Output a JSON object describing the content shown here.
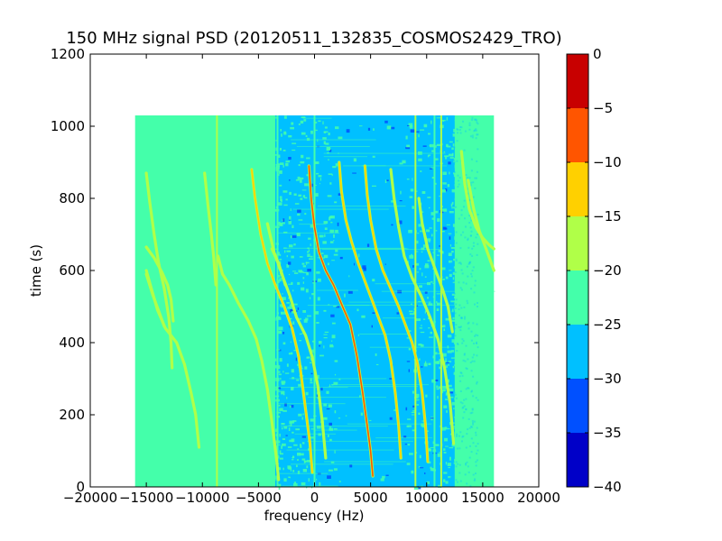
{
  "chart_data": {
    "type": "heatmap",
    "title": "150 MHz signal PSD (20120511_132835_COSMOS2429_TRO)",
    "xlabel": "frequency (Hz)",
    "ylabel": "time (s)",
    "xlim": [
      -20000,
      20000
    ],
    "ylim": [
      0,
      1200
    ],
    "x_ticks": [
      -20000,
      -15000,
      -10000,
      -5000,
      0,
      5000,
      10000,
      15000,
      20000
    ],
    "x_tick_labels": [
      "−20000",
      "−15000",
      "−10000",
      "−5000",
      "0",
      "5000",
      "10000",
      "15000",
      "20000"
    ],
    "y_ticks": [
      0,
      200,
      400,
      600,
      800,
      1000,
      1200
    ],
    "y_tick_labels": [
      "0",
      "200",
      "400",
      "600",
      "800",
      "1000",
      "1200"
    ],
    "data_extent": {
      "x": [
        -16000,
        16000
      ],
      "y": [
        0,
        1030
      ]
    },
    "background_level_db": -22.5,
    "colorbar": {
      "range": [
        -40,
        0
      ],
      "ticks": [
        0,
        -5,
        -10,
        -15,
        -20,
        -25,
        -30,
        -35,
        -40
      ],
      "tick_labels": [
        "0",
        "−5",
        "−10",
        "−15",
        "−20",
        "−25",
        "−30",
        "−35",
        "−40"
      ],
      "levels": [
        {
          "range": [
            -40,
            -35
          ],
          "color": "#0000c8"
        },
        {
          "range": [
            -35,
            -30
          ],
          "color": "#0050ff"
        },
        {
          "range": [
            -30,
            -25
          ],
          "color": "#00c0ff"
        },
        {
          "range": [
            -25,
            -20
          ],
          "color": "#44ffaa"
        },
        {
          "range": [
            -20,
            -15
          ],
          "color": "#b0ff48"
        },
        {
          "range": [
            -15,
            -10
          ],
          "color": "#ffd000"
        },
        {
          "range": [
            -10,
            -5
          ],
          "color": "#ff5500"
        },
        {
          "range": [
            -5,
            0
          ],
          "color": "#c80000"
        }
      ]
    },
    "noise_band": {
      "x": [
        -3500,
        12500
      ],
      "y": [
        0,
        1030
      ],
      "level_db": -27.5
    },
    "vertical_lines": [
      {
        "x": -8700,
        "y": [
          0,
          1030
        ],
        "level_db": -17.5
      },
      {
        "x": -8200,
        "y": [
          0,
          1030
        ],
        "level_db": -22.5
      },
      {
        "x": -3300,
        "y": [
          0,
          1030
        ],
        "level_db": -22.5
      },
      {
        "x": 0,
        "y": [
          0,
          1030
        ],
        "level_db": -22.5
      },
      {
        "x": 9000,
        "y": [
          0,
          1030
        ],
        "level_db": -17.5
      },
      {
        "x": 10700,
        "y": [
          0,
          1030
        ],
        "level_db": -22.5
      },
      {
        "x": 11300,
        "y": [
          0,
          1030
        ],
        "level_db": -17.5
      }
    ],
    "traces": [
      {
        "level_db": -17.5,
        "points": [
          [
            -15000,
            870
          ],
          [
            -14700,
            790
          ],
          [
            -14300,
            700
          ],
          [
            -13900,
            620
          ],
          [
            -13400,
            550
          ],
          [
            -13000,
            470
          ],
          [
            -12800,
            400
          ],
          [
            -12700,
            330
          ]
        ]
      },
      {
        "level_db": -17.5,
        "points": [
          [
            -15000,
            665
          ],
          [
            -14300,
            635
          ],
          [
            -13600,
            595
          ],
          [
            -13100,
            560
          ],
          [
            -12800,
            520
          ],
          [
            -12600,
            460
          ]
        ]
      },
      {
        "level_db": -17.5,
        "points": [
          [
            -15000,
            600
          ],
          [
            -14500,
            545
          ],
          [
            -14000,
            490
          ],
          [
            -13300,
            440
          ],
          [
            -12300,
            400
          ],
          [
            -11600,
            340
          ],
          [
            -11000,
            260
          ],
          [
            -10600,
            200
          ],
          [
            -10300,
            110
          ]
        ]
      },
      {
        "level_db": -17.5,
        "points": [
          [
            -15000,
            590
          ],
          [
            -14400,
            530
          ],
          [
            -13800,
            480
          ],
          [
            -13400,
            445
          ]
        ]
      },
      {
        "level_db": -17.5,
        "points": [
          [
            -9800,
            870
          ],
          [
            -9500,
            780
          ],
          [
            -9200,
            700
          ],
          [
            -9000,
            640
          ],
          [
            -8800,
            560
          ]
        ]
      },
      {
        "level_db": -17.5,
        "points": [
          [
            -8600,
            640
          ],
          [
            -8200,
            590
          ],
          [
            -7600,
            560
          ],
          [
            -6800,
            510
          ],
          [
            -5900,
            460
          ],
          [
            -5200,
            410
          ],
          [
            -4700,
            350
          ],
          [
            -4200,
            270
          ],
          [
            -3800,
            180
          ],
          [
            -3400,
            80
          ],
          [
            -3200,
            20
          ]
        ]
      },
      {
        "level_db": -12.5,
        "points": [
          [
            -5600,
            880
          ],
          [
            -5300,
            800
          ],
          [
            -4800,
            700
          ],
          [
            -4200,
            620
          ],
          [
            -3500,
            560
          ],
          [
            -2700,
            500
          ],
          [
            -2000,
            440
          ],
          [
            -1400,
            360
          ],
          [
            -900,
            240
          ],
          [
            -400,
            120
          ],
          [
            -200,
            40
          ]
        ]
      },
      {
        "level_db": -17.5,
        "points": [
          [
            -4200,
            730
          ],
          [
            -3600,
            650
          ],
          [
            -2800,
            580
          ],
          [
            -2200,
            530
          ],
          [
            -1600,
            470
          ],
          [
            -800,
            420
          ],
          [
            -200,
            360
          ],
          [
            300,
            280
          ],
          [
            700,
            180
          ],
          [
            1000,
            80
          ]
        ]
      },
      {
        "level_db": -17.5,
        "points": [
          [
            -3800,
            660
          ],
          [
            -3200,
            620
          ],
          [
            -2600,
            560
          ]
        ]
      },
      {
        "level_db": -7.5,
        "points": [
          [
            -500,
            890
          ],
          [
            -300,
            800
          ],
          [
            0,
            720
          ],
          [
            400,
            650
          ],
          [
            1000,
            600
          ],
          [
            1700,
            560
          ],
          [
            2500,
            500
          ],
          [
            3200,
            450
          ],
          [
            3800,
            360
          ],
          [
            4300,
            260
          ],
          [
            4700,
            170
          ],
          [
            5000,
            100
          ],
          [
            5200,
            30
          ]
        ]
      },
      {
        "level_db": -12.5,
        "points": [
          [
            2200,
            900
          ],
          [
            2400,
            820
          ],
          [
            2800,
            740
          ],
          [
            3300,
            680
          ],
          [
            3900,
            620
          ],
          [
            4500,
            570
          ],
          [
            5100,
            520
          ],
          [
            5700,
            470
          ],
          [
            6300,
            420
          ],
          [
            6800,
            350
          ],
          [
            7200,
            260
          ],
          [
            7500,
            170
          ],
          [
            7700,
            80
          ]
        ]
      },
      {
        "level_db": -12.5,
        "points": [
          [
            4500,
            890
          ],
          [
            4700,
            810
          ],
          [
            5000,
            740
          ],
          [
            5500,
            660
          ],
          [
            6100,
            600
          ],
          [
            6800,
            550
          ],
          [
            7500,
            500
          ],
          [
            8100,
            450
          ],
          [
            8700,
            400
          ],
          [
            9200,
            340
          ],
          [
            9600,
            260
          ],
          [
            9900,
            170
          ],
          [
            10100,
            70
          ]
        ]
      },
      {
        "level_db": -17.5,
        "points": [
          [
            6800,
            880
          ],
          [
            7100,
            800
          ],
          [
            7500,
            720
          ],
          [
            8000,
            640
          ],
          [
            8700,
            580
          ],
          [
            9500,
            530
          ],
          [
            10300,
            470
          ],
          [
            11000,
            410
          ],
          [
            11600,
            330
          ],
          [
            12100,
            230
          ],
          [
            12400,
            120
          ]
        ]
      },
      {
        "level_db": -17.5,
        "points": [
          [
            9300,
            800
          ],
          [
            9600,
            730
          ],
          [
            10100,
            660
          ],
          [
            10800,
            600
          ],
          [
            11400,
            550
          ],
          [
            11900,
            500
          ],
          [
            12300,
            430
          ]
        ]
      },
      {
        "level_db": -17.5,
        "points": [
          [
            13100,
            930
          ],
          [
            13400,
            840
          ],
          [
            13800,
            770
          ],
          [
            14400,
            720
          ],
          [
            15000,
            690
          ],
          [
            15600,
            670
          ],
          [
            16000,
            660
          ]
        ]
      },
      {
        "level_db": -17.5,
        "points": [
          [
            13700,
            850
          ],
          [
            14200,
            770
          ],
          [
            14700,
            710
          ],
          [
            15300,
            660
          ],
          [
            16000,
            600
          ]
        ]
      }
    ]
  }
}
